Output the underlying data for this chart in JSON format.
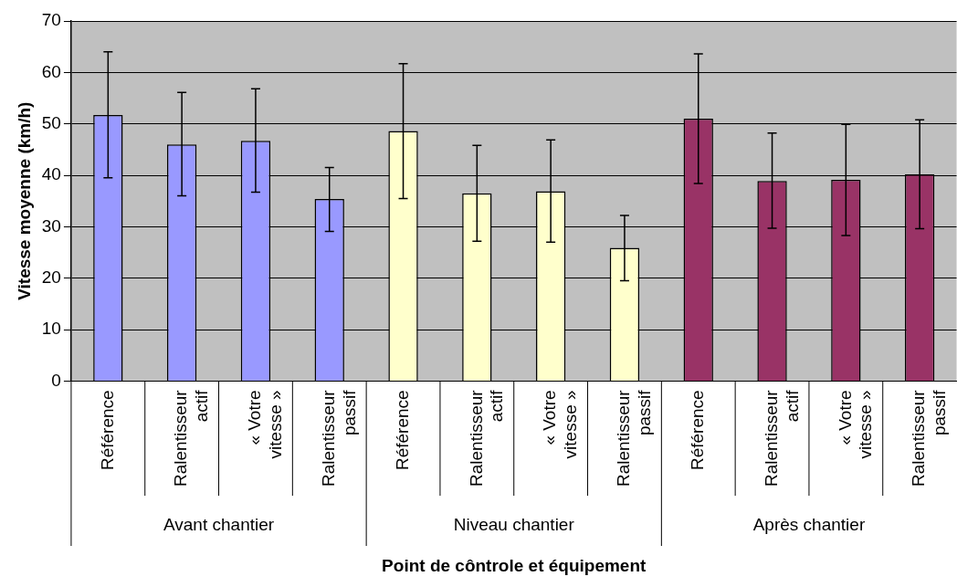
{
  "chart_data": {
    "type": "bar",
    "xlabel": "Point de côntrole et équipement",
    "ylabel": "Vitesse moyenne (km/h)",
    "categories": [
      "Référence",
      "Ralentisseur actif",
      "« Votre vitesse »",
      "Ralentisseur passif",
      "Référence",
      "Ralentisseur actif",
      "« Votre vitesse »",
      "Ralentisseur passif",
      "Référence",
      "Ralentisseur actif",
      "« Votre vitesse »",
      "Ralentisseur passif"
    ],
    "series": [
      {
        "color": "#9999ff",
        "values": [
          51.7,
          46.0,
          46.7,
          35.4,
          null,
          null,
          null,
          null,
          null,
          null,
          null,
          null
        ],
        "errors": [
          [
            39.5,
            64.0
          ],
          [
            36.0,
            56.1
          ],
          [
            36.7,
            56.8
          ],
          [
            29.1,
            41.5
          ],
          null,
          null,
          null,
          null,
          null,
          null,
          null,
          null
        ]
      },
      {
        "color": "#ffffcc",
        "values": [
          null,
          null,
          null,
          null,
          48.6,
          36.5,
          36.9,
          25.9,
          null,
          null,
          null,
          null
        ],
        "errors": [
          null,
          null,
          null,
          null,
          [
            35.5,
            61.7
          ],
          [
            27.2,
            45.8
          ],
          [
            27.0,
            46.9
          ],
          [
            19.5,
            32.2
          ],
          null,
          null,
          null,
          null
        ]
      },
      {
        "color": "#993366",
        "values": [
          null,
          null,
          null,
          null,
          null,
          null,
          null,
          null,
          51.0,
          38.9,
          39.1,
          40.2
        ],
        "errors": [
          null,
          null,
          null,
          null,
          null,
          null,
          null,
          null,
          [
            38.4,
            63.6
          ],
          [
            29.7,
            48.2
          ],
          [
            28.3,
            49.9
          ],
          [
            29.6,
            50.8
          ]
        ]
      }
    ],
    "ylim": [
      0,
      70
    ],
    "yticks": [
      0,
      10,
      20,
      30,
      40,
      50,
      60,
      70
    ],
    "grid": "y",
    "legend": false,
    "annotations": [
      "Avant chantier",
      "Niveau chantier",
      "Après chantier"
    ]
  }
}
